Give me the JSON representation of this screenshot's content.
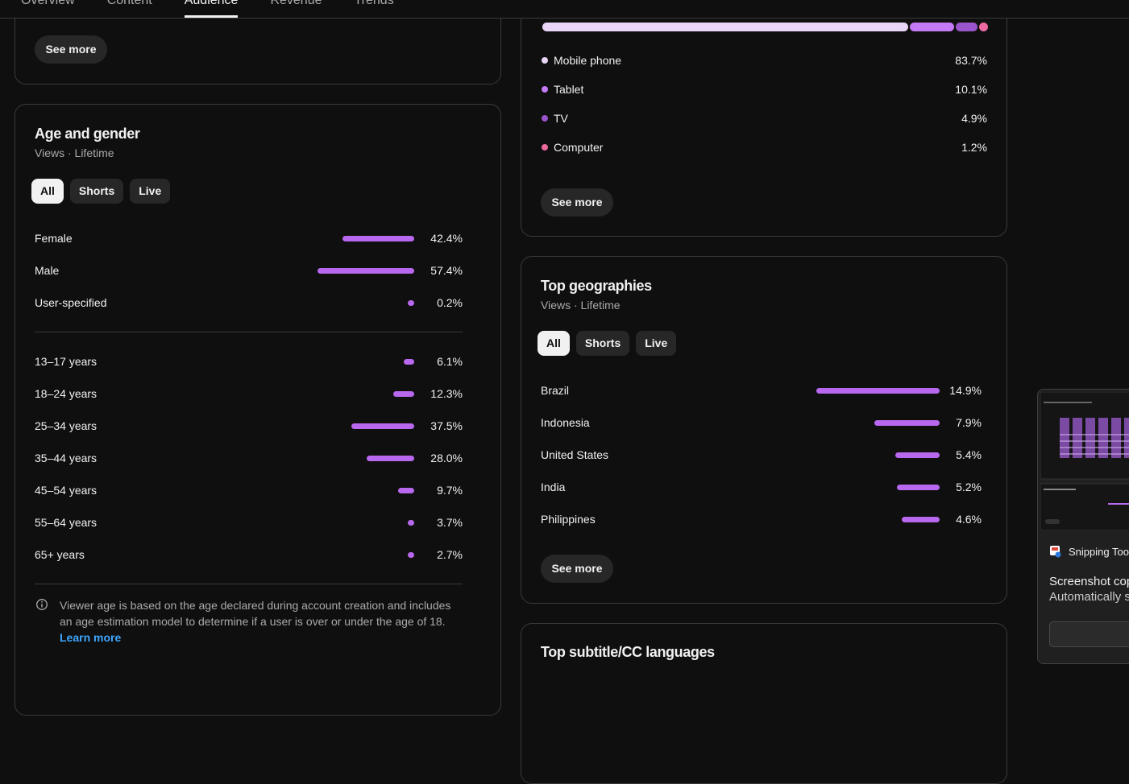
{
  "nav": {
    "tabs": [
      "Overview",
      "Content",
      "Audience",
      "Revenue",
      "Trends"
    ],
    "active": 2
  },
  "top_card": {
    "button": "See more"
  },
  "age_gender": {
    "title": "Age and gender",
    "subtitle": "Views · Lifetime",
    "filters": [
      "All",
      "Shorts",
      "Live"
    ],
    "selected_filter": 0,
    "bar_color": "#b868ee",
    "gender": [
      {
        "label": "Female",
        "value": 42.4,
        "value_label": "42.4%"
      },
      {
        "label": "Male",
        "value": 57.4,
        "value_label": "57.4%"
      },
      {
        "label": "User-specified",
        "value": 0.2,
        "value_label": "0.2%"
      }
    ],
    "age": [
      {
        "label": "13–17 years",
        "value": 6.1,
        "value_label": "6.1%"
      },
      {
        "label": "18–24 years",
        "value": 12.3,
        "value_label": "12.3%"
      },
      {
        "label": "25–34 years",
        "value": 37.5,
        "value_label": "37.5%"
      },
      {
        "label": "35–44 years",
        "value": 28.0,
        "value_label": "28.0%"
      },
      {
        "label": "45–54 years",
        "value": 9.7,
        "value_label": "9.7%"
      },
      {
        "label": "55–64 years",
        "value": 3.7,
        "value_label": "3.7%"
      },
      {
        "label": "65+ years",
        "value": 2.7,
        "value_label": "2.7%"
      }
    ],
    "note": "Viewer age is based on the age declared during account creation and includes an age estimation model to determine if a user is over or under the age of 18.",
    "link": "Learn more"
  },
  "devices": {
    "items": [
      {
        "label": "Mobile phone",
        "value": 83.7,
        "value_label": "83.7%",
        "color": "#e9d6f7"
      },
      {
        "label": "Tablet",
        "value": 10.1,
        "value_label": "10.1%",
        "color": "#c57af5"
      },
      {
        "label": "TV",
        "value": 4.9,
        "value_label": "4.9%",
        "color": "#9a55cc"
      },
      {
        "label": "Computer",
        "value": 1.2,
        "value_label": "1.2%",
        "color": "#ec6a9f"
      }
    ],
    "button": "See more"
  },
  "geographies": {
    "title": "Top geographies",
    "subtitle": "Views · Lifetime",
    "filters": [
      "All",
      "Shorts",
      "Live"
    ],
    "selected_filter": 0,
    "bar_color": "#b868ee",
    "items": [
      {
        "label": "Brazil",
        "value": 14.9,
        "value_label": "14.9%"
      },
      {
        "label": "Indonesia",
        "value": 7.9,
        "value_label": "7.9%"
      },
      {
        "label": "United States",
        "value": 5.4,
        "value_label": "5.4%"
      },
      {
        "label": "India",
        "value": 5.2,
        "value_label": "5.2%"
      },
      {
        "label": "Philippines",
        "value": 4.6,
        "value_label": "4.6%"
      }
    ],
    "button": "See more"
  },
  "subtitle_card": {
    "title": "Top subtitle/CC languages"
  },
  "notification": {
    "app": "Snipping Tool",
    "title": "Screenshot copi",
    "body": "Automatically sa"
  }
}
